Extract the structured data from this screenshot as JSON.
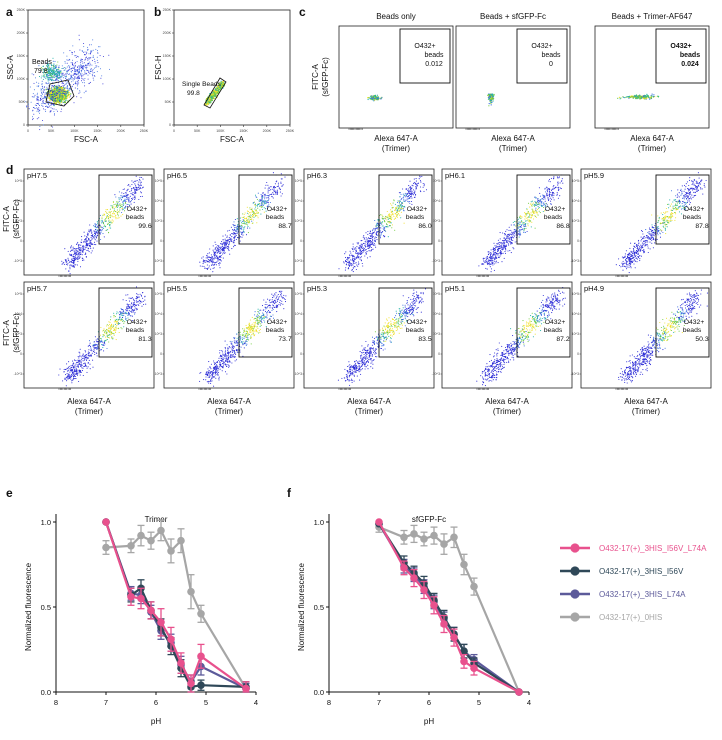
{
  "panel_letters": {
    "a": "a",
    "b": "b",
    "c": "c",
    "d": "d",
    "e": "e",
    "f": "f"
  },
  "panel_a": {
    "xlabel": "FSC-A",
    "ylabel": "SSC-A",
    "gate_name": "Beads",
    "gate_value": "79.8",
    "x_ticks": [
      "0",
      "50K",
      "100K",
      "150K",
      "200K",
      "250K"
    ],
    "y_ticks": [
      "0",
      "50K",
      "100K",
      "150K",
      "200K",
      "250K"
    ]
  },
  "panel_b": {
    "xlabel": "FSC-A",
    "ylabel": "FSC-H",
    "gate_name": "Single Beads",
    "gate_value": "99.8",
    "x_ticks": [
      "0",
      "50K",
      "100K",
      "150K",
      "200K",
      "250K"
    ],
    "y_ticks": [
      "0",
      "50K",
      "100K",
      "150K",
      "200K",
      "250K"
    ]
  },
  "panel_c": {
    "xlabel_line1": "Alexa 647-A",
    "xlabel_line2": "(Trimer)",
    "ylabel_line1": "FITC-A",
    "ylabel_line2": "(sfGFP-Fc)",
    "plots": [
      {
        "title": "Beads only",
        "gate_label1": "O432+",
        "gate_label2": "beads",
        "value": "0.012"
      },
      {
        "title": "Beads + sfGFP-Fc",
        "gate_label1": "O432+",
        "gate_label2": "beads",
        "value": "0"
      },
      {
        "title": "Beads + Trimer-AF647",
        "gate_label1": "O432+",
        "gate_label2": "beads",
        "value": "0.024"
      }
    ]
  },
  "panel_d": {
    "xlabel_line1": "Alexa 647-A",
    "xlabel_line2": "(Trimer)",
    "ylabel_line1": "FITC-A",
    "ylabel_line2": "(sfGFP-Fc)",
    "gate_label1": "O432+",
    "gate_label2": "beads",
    "y_ticks": [
      "10^5",
      "10^4",
      "10^3",
      "0",
      "-10^3"
    ],
    "plots": [
      {
        "ph": "pH7.5",
        "value": "99.6"
      },
      {
        "ph": "pH6.5",
        "value": "88.7"
      },
      {
        "ph": "pH6.3",
        "value": "86.0"
      },
      {
        "ph": "pH6.1",
        "value": "86.8"
      },
      {
        "ph": "pH5.9",
        "value": "87.8"
      },
      {
        "ph": "pH5.7",
        "value": "81.3"
      },
      {
        "ph": "pH5.5",
        "value": "73.7"
      },
      {
        "ph": "pH5.3",
        "value": "83.5"
      },
      {
        "ph": "pH5.1",
        "value": "87.2"
      },
      {
        "ph": "pH4.9",
        "value": "50.3"
      }
    ]
  },
  "chart_data": [
    {
      "type": "line",
      "title": "Trimer",
      "xlabel": "pH",
      "ylabel": "Normalized fluorescence",
      "xlim": [
        8,
        4
      ],
      "ylim": [
        0,
        1
      ],
      "x_ticks": [
        8,
        7,
        6,
        5,
        4
      ],
      "y_ticks": [
        "0.0",
        "0.5",
        "1.0"
      ],
      "x": [
        7.0,
        6.5,
        6.3,
        6.1,
        5.9,
        5.7,
        5.5,
        5.3,
        5.1,
        4.2
      ],
      "series": [
        {
          "name": "O432-17(+)_3HIS_I56V_L74A",
          "color": "#e8518d",
          "values": [
            1.0,
            0.56,
            0.55,
            0.48,
            0.41,
            0.31,
            0.17,
            0.05,
            0.21,
            0.02
          ],
          "errors": [
            0,
            0.05,
            0.06,
            0.05,
            0.08,
            0.07,
            0.06,
            0.05,
            0.07,
            0.04
          ]
        },
        {
          "name": "O432-17(+)_3HIS_I56V",
          "color": "#2f4858",
          "values": [
            1.0,
            0.57,
            0.61,
            0.48,
            0.38,
            0.27,
            0.14,
            0.03,
            0.04,
            0.03
          ],
          "errors": [
            0,
            0.04,
            0.05,
            0.05,
            0.05,
            0.05,
            0.05,
            0.04,
            0.03,
            0.03
          ]
        },
        {
          "name": "O432-17(+)_3HIS_L74A",
          "color": "#5c5a9a",
          "values": [
            1.0,
            0.58,
            0.57,
            0.47,
            0.36,
            0.29,
            0.16,
            0.06,
            0.15,
            0.02
          ],
          "errors": [
            0,
            0.04,
            0.05,
            0.04,
            0.05,
            0.05,
            0.05,
            0.04,
            0.05,
            0.03
          ]
        },
        {
          "name": "O432-17(+)_0HIS",
          "color": "#a6a6a6",
          "values": [
            0.85,
            0.86,
            0.92,
            0.89,
            0.95,
            0.83,
            0.89,
            0.59,
            0.46,
            0.02
          ],
          "errors": [
            0.04,
            0.04,
            0.06,
            0.05,
            0.06,
            0.07,
            0.07,
            0.1,
            0.05,
            0.03
          ]
        }
      ]
    },
    {
      "type": "line",
      "title": "sfGFP-Fc",
      "xlabel": "pH",
      "ylabel": "Normalized fluorescence",
      "xlim": [
        8,
        4
      ],
      "ylim": [
        0,
        1
      ],
      "x_ticks": [
        8,
        7,
        6,
        5,
        4
      ],
      "y_ticks": [
        "0.0",
        "0.5",
        "1.0"
      ],
      "x": [
        7.0,
        6.5,
        6.3,
        6.1,
        5.9,
        5.7,
        5.5,
        5.3,
        5.1,
        4.2
      ],
      "series": [
        {
          "name": "O432-17(+)_3HIS_I56V_L74A",
          "color": "#e8518d",
          "values": [
            1.0,
            0.73,
            0.67,
            0.6,
            0.51,
            0.4,
            0.32,
            0.18,
            0.14,
            0.0
          ],
          "errors": [
            0,
            0.04,
            0.05,
            0.05,
            0.05,
            0.05,
            0.05,
            0.04,
            0.04,
            0
          ]
        },
        {
          "name": "O432-17(+)_3HIS_I56V",
          "color": "#2f4858",
          "values": [
            0.99,
            0.76,
            0.7,
            0.64,
            0.54,
            0.44,
            0.34,
            0.24,
            0.17,
            0.0
          ],
          "errors": [
            0,
            0.04,
            0.04,
            0.04,
            0.04,
            0.04,
            0.04,
            0.04,
            0.03,
            0
          ]
        },
        {
          "name": "O432-17(+)_3HIS_L74A",
          "color": "#5c5a9a",
          "values": [
            0.99,
            0.74,
            0.69,
            0.62,
            0.53,
            0.43,
            0.34,
            0.24,
            0.19,
            0.0
          ],
          "errors": [
            0,
            0.04,
            0.04,
            0.04,
            0.04,
            0.04,
            0.04,
            0.04,
            0.03,
            0
          ]
        },
        {
          "name": "O432-17(+)_0HIS",
          "color": "#a6a6a6",
          "values": [
            0.97,
            0.91,
            0.93,
            0.9,
            0.92,
            0.87,
            0.91,
            0.75,
            0.62,
            0.0
          ],
          "errors": [
            0.03,
            0.04,
            0.05,
            0.04,
            0.05,
            0.06,
            0.06,
            0.06,
            0.05,
            0
          ]
        }
      ]
    }
  ]
}
